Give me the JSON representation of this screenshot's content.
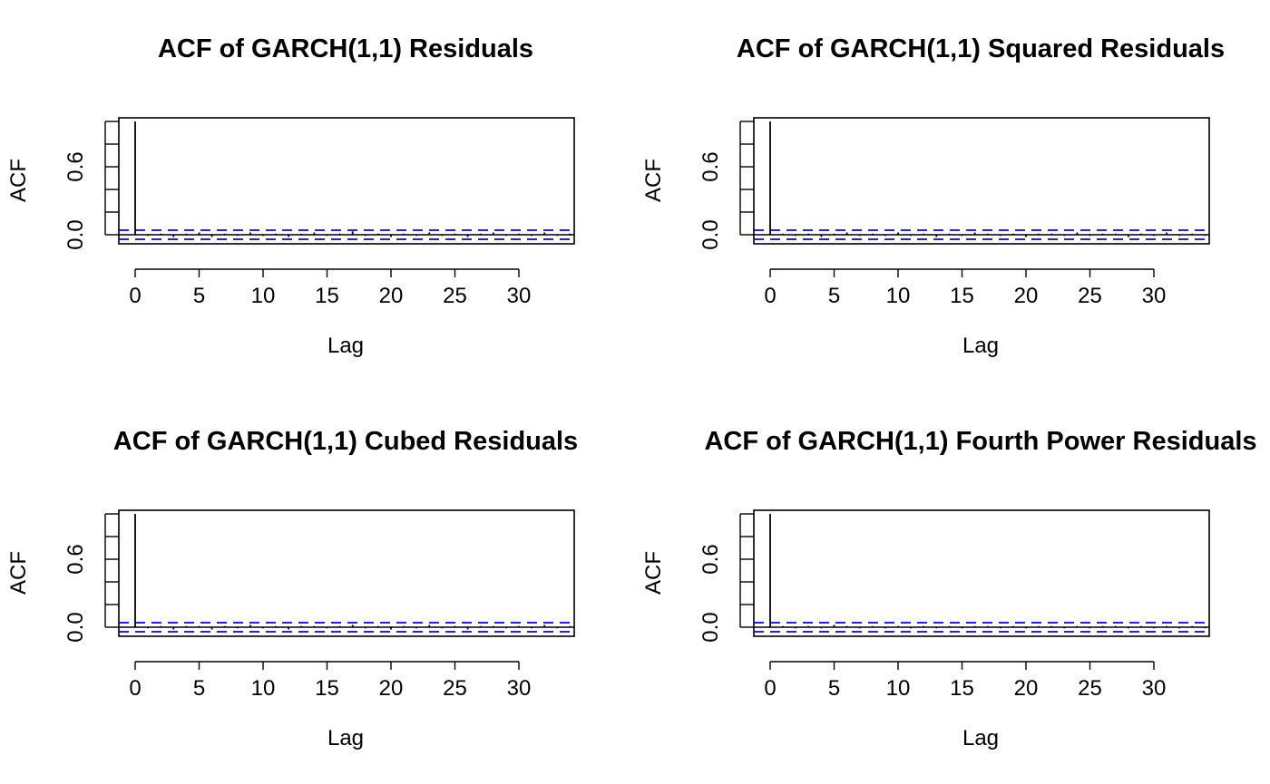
{
  "chart_data": [
    {
      "type": "bar",
      "title": "ACF of GARCH(1,1) Residuals",
      "xlabel": "Lag",
      "ylabel": "ACF",
      "x": [
        0,
        1,
        2,
        3,
        4,
        5,
        6,
        7,
        8,
        9,
        10,
        11,
        12,
        13,
        14,
        15,
        16,
        17,
        18,
        19,
        20,
        21,
        22,
        23,
        24,
        25,
        26,
        27,
        28,
        29,
        30,
        31,
        32,
        33,
        34
      ],
      "values": [
        1.0,
        -0.01,
        0.01,
        -0.02,
        0.01,
        0.02,
        -0.02,
        0.01,
        -0.01,
        0.02,
        -0.01,
        0.01,
        -0.02,
        0.01,
        0.02,
        -0.01,
        0.01,
        0.03,
        -0.01,
        0.01,
        -0.02,
        0.01,
        -0.01,
        0.02,
        -0.01,
        0.01,
        -0.02,
        0.01,
        0.02,
        -0.01,
        0.01,
        -0.01,
        0.02,
        -0.01,
        0.01
      ],
      "ci": 0.04,
      "xlim": [
        -1.4,
        34.3
      ],
      "ylim": [
        -0.05,
        1.0
      ],
      "xticks": [
        "0",
        "5",
        "10",
        "15",
        "20",
        "25",
        "30"
      ],
      "yticks": [
        "0.0",
        "0.6"
      ]
    },
    {
      "type": "bar",
      "title": "ACF of GARCH(1,1) Squared Residuals",
      "xlabel": "Lag",
      "ylabel": "ACF",
      "x": [
        0,
        1,
        2,
        3,
        4,
        5,
        6,
        7,
        8,
        9,
        10,
        11,
        12,
        13,
        14,
        15,
        16,
        17,
        18,
        19,
        20,
        21,
        22,
        23,
        24,
        25,
        26,
        27,
        28,
        29,
        30,
        31,
        32,
        33,
        34
      ],
      "values": [
        1.0,
        0.01,
        -0.01,
        0.01,
        -0.02,
        0.01,
        0.02,
        -0.01,
        0.01,
        -0.01,
        0.02,
        -0.01,
        0.01,
        -0.02,
        0.01,
        -0.01,
        0.02,
        0.01,
        -0.01,
        0.01,
        -0.02,
        0.01,
        0.01,
        -0.01,
        0.02,
        -0.01,
        0.01,
        0.01,
        -0.02,
        0.01,
        -0.01,
        0.02,
        -0.01,
        0.01,
        -0.01
      ],
      "ci": 0.04,
      "xlim": [
        -1.4,
        34.3
      ],
      "ylim": [
        -0.05,
        1.0
      ],
      "xticks": [
        "0",
        "5",
        "10",
        "15",
        "20",
        "25",
        "30"
      ],
      "yticks": [
        "0.0",
        "0.6"
      ]
    },
    {
      "type": "bar",
      "title": "ACF of GARCH(1,1) Cubed Residuals",
      "xlabel": "Lag",
      "ylabel": "ACF",
      "x": [
        0,
        1,
        2,
        3,
        4,
        5,
        6,
        7,
        8,
        9,
        10,
        11,
        12,
        13,
        14,
        15,
        16,
        17,
        18,
        19,
        20,
        21,
        22,
        23,
        24,
        25,
        26,
        27,
        28,
        29,
        30,
        31,
        32,
        33,
        34
      ],
      "values": [
        1.0,
        -0.01,
        0.01,
        -0.02,
        0.01,
        0.01,
        -0.02,
        0.01,
        -0.01,
        0.02,
        -0.01,
        0.01,
        -0.02,
        0.01,
        0.01,
        -0.01,
        0.01,
        0.02,
        -0.01,
        0.01,
        -0.02,
        0.01,
        -0.01,
        0.02,
        -0.01,
        0.01,
        -0.02,
        0.01,
        0.01,
        -0.01,
        0.01,
        -0.01,
        0.02,
        -0.01,
        0.01
      ],
      "ci": 0.04,
      "xlim": [
        -1.4,
        34.3
      ],
      "ylim": [
        -0.05,
        1.0
      ],
      "xticks": [
        "0",
        "5",
        "10",
        "15",
        "20",
        "25",
        "30"
      ],
      "yticks": [
        "0.0",
        "0.6"
      ]
    },
    {
      "type": "bar",
      "title": "ACF of GARCH(1,1) Fourth Power Residuals",
      "xlabel": "Lag",
      "ylabel": "ACF",
      "x": [
        0,
        1,
        2,
        3,
        4,
        5,
        6,
        7,
        8,
        9,
        10,
        11,
        12,
        13,
        14,
        15,
        16,
        17,
        18,
        19,
        20,
        21,
        22,
        23,
        24,
        25,
        26,
        27,
        28,
        29,
        30,
        31,
        32,
        33,
        34
      ],
      "values": [
        1.0,
        0.01,
        -0.01,
        0.01,
        -0.01,
        0.02,
        0.01,
        -0.01,
        0.01,
        -0.01,
        0.01,
        -0.01,
        0.01,
        -0.01,
        0.01,
        -0.01,
        0.01,
        0.01,
        -0.01,
        0.01,
        -0.01,
        0.01,
        0.01,
        -0.01,
        0.01,
        -0.01,
        0.01,
        0.01,
        -0.01,
        0.01,
        -0.01,
        0.01,
        -0.01,
        0.01,
        -0.01
      ],
      "ci": 0.04,
      "xlim": [
        -1.4,
        34.3
      ],
      "ylim": [
        -0.05,
        1.0
      ],
      "xticks": [
        "0",
        "5",
        "10",
        "15",
        "20",
        "25",
        "30"
      ],
      "yticks": [
        "0.0",
        "0.6"
      ]
    }
  ],
  "colors": {
    "stem": "#000000",
    "ci_line": "#0000ff",
    "axis": "#000000"
  }
}
